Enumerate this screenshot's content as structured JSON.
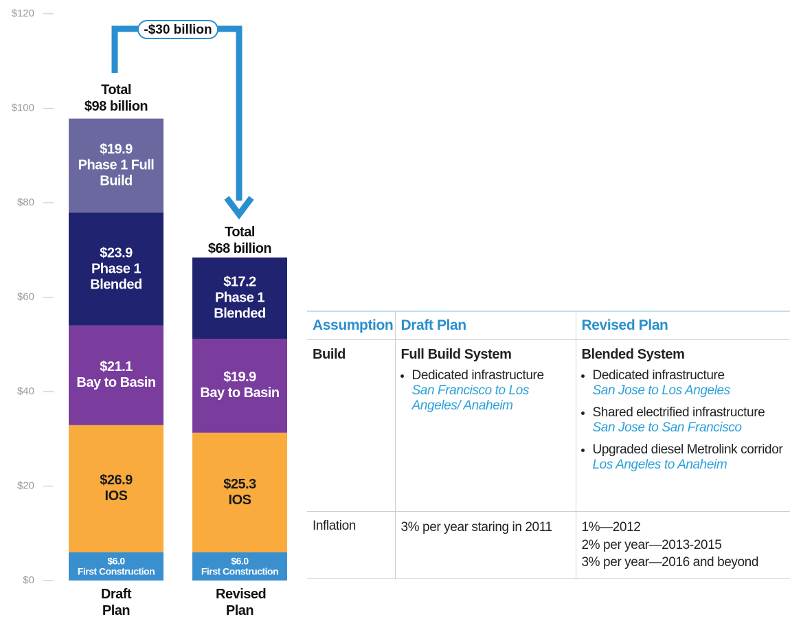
{
  "chart_data": {
    "type": "stacked_bar",
    "categories": [
      "Draft Plan",
      "Revised Plan"
    ],
    "series": [
      {
        "name": "First Construction",
        "color": "#3a8fcf",
        "label_color": "#ffffff",
        "values": [
          6.0,
          6.0
        ],
        "value_labels": [
          "$6.0",
          "$6.0"
        ]
      },
      {
        "name": "IOS",
        "color": "#f9ab3d",
        "label_color": "#1a1a1a",
        "values": [
          26.9,
          25.3
        ],
        "value_labels": [
          "$26.9",
          "$25.3"
        ]
      },
      {
        "name": "Bay to Basin",
        "color": "#7a3d9e",
        "label_color": "#ffffff",
        "values": [
          21.1,
          19.9
        ],
        "value_labels": [
          "$21.1",
          "$19.9"
        ]
      },
      {
        "name": "Phase 1 Blended",
        "color": "#1f2370",
        "label_color": "#ffffff",
        "values": [
          23.9,
          17.2
        ],
        "value_labels": [
          "$23.9",
          "$17.2"
        ]
      },
      {
        "name": "Phase 1 Full Build",
        "color": "#6b68a0",
        "label_color": "#ffffff",
        "values": [
          19.9,
          null
        ],
        "value_labels": [
          "$19.9",
          null
        ]
      }
    ],
    "total_title": "Total",
    "totals": {
      "values": [
        98,
        68
      ],
      "value_labels": [
        "$98 billion",
        "$68 billion"
      ]
    },
    "difference_label": "-$30 billion",
    "ylim": [
      0,
      120
    ],
    "yticks": [
      {
        "value": 0,
        "label": "$0"
      },
      {
        "value": 20,
        "label": "$20"
      },
      {
        "value": 40,
        "label": "$40"
      },
      {
        "value": 60,
        "label": "$60"
      },
      {
        "value": 80,
        "label": "$80"
      },
      {
        "value": 100,
        "label": "$100"
      },
      {
        "value": 120,
        "label": "$120"
      }
    ]
  },
  "table": {
    "columns": [
      "Assumption",
      "Draft Plan",
      "Revised Plan"
    ],
    "rows": [
      {
        "label": "Build",
        "cells": [
          {
            "title": "Full Build System",
            "items": [
              {
                "text": "Dedicated infrastructure",
                "detail": "San Francisco to Los Angeles/ Anaheim"
              }
            ]
          },
          {
            "title": "Blended System",
            "items": [
              {
                "text": "Dedicated infrastructure",
                "detail": "San Jose to Los Angeles"
              },
              {
                "text": "Shared electrified infrastructure",
                "detail": "San Jose to San Francisco"
              },
              {
                "text": "Upgraded diesel Metrolink corridor",
                "detail": "Los Angeles to Anaheim"
              }
            ]
          }
        ]
      },
      {
        "label": "Inflation",
        "cells": [
          {
            "lines": [
              "3% per year staring in 2011"
            ]
          },
          {
            "lines": [
              "1%—2012",
              "2% per year—2013-2015",
              "3% per year—2016 and beyond"
            ]
          }
        ]
      }
    ]
  }
}
